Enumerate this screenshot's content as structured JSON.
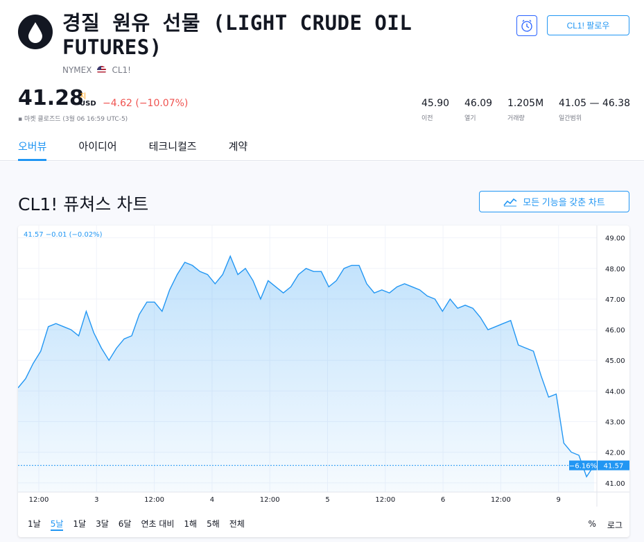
{
  "instrument": {
    "title": "경질 원유 선물 (LIGHT CRUDE OIL FUTURES)",
    "exchange": "NYMEX",
    "symbol": "CL1!",
    "logo_icon": "oil-drop-icon"
  },
  "actions": {
    "alarm_icon": "alarm-clock-icon",
    "follow_label": "CL1! 팔로우"
  },
  "quote": {
    "price": "41.28",
    "delay_marker": "지",
    "currency": "USD",
    "change": "−4.62 (−10.07%)",
    "market_status": "▪ 마켓 클로즈드 (3월 06 16:59 UTC-5)"
  },
  "stats": [
    {
      "value": "45.90",
      "label": "이전"
    },
    {
      "value": "46.09",
      "label": "열기"
    },
    {
      "value": "1.205M",
      "label": "거래량"
    },
    {
      "value": "41.05 — 46.38",
      "label": "일간범위"
    }
  ],
  "tabs": [
    {
      "label": "오버뷰",
      "active": true
    },
    {
      "label": "아이디어",
      "active": false
    },
    {
      "label": "테크니컬즈",
      "active": false
    },
    {
      "label": "계약",
      "active": false
    }
  ],
  "chart_section": {
    "title": "CL1! 퓨쳐스 차트",
    "full_chart_label": "모든 기능을 갖춘 차트",
    "full_chart_icon": "chart-icon"
  },
  "chart_data": {
    "type": "area",
    "legend": "41.57 −0.01 (−0.02%)",
    "ylim": [
      40.7,
      49.4
    ],
    "y_ticks": [
      "49.00",
      "48.00",
      "47.00",
      "46.00",
      "45.00",
      "44.00",
      "43.00",
      "42.00",
      "41.00"
    ],
    "x_ticks": [
      "12:00",
      "3",
      "12:00",
      "4",
      "12:00",
      "5",
      "12:00",
      "6",
      "12:00",
      "9"
    ],
    "last_value": "41.57",
    "last_change": "−6.16%",
    "color": "#2196f3",
    "values": [
      44.1,
      44.4,
      44.9,
      45.3,
      46.1,
      46.2,
      46.1,
      46.0,
      45.8,
      46.6,
      45.9,
      45.4,
      45.0,
      45.4,
      45.7,
      45.8,
      46.5,
      46.9,
      46.9,
      46.6,
      47.3,
      47.8,
      48.2,
      48.1,
      47.9,
      47.8,
      47.5,
      47.8,
      48.4,
      47.8,
      48.0,
      47.6,
      47.0,
      47.6,
      47.4,
      47.2,
      47.4,
      47.8,
      48.0,
      47.9,
      47.9,
      47.4,
      47.6,
      48.0,
      48.1,
      48.1,
      47.5,
      47.2,
      47.3,
      47.2,
      47.4,
      47.5,
      47.4,
      47.3,
      47.1,
      47.0,
      46.6,
      47.0,
      46.7,
      46.8,
      46.7,
      46.4,
      46.0,
      46.1,
      46.2,
      46.3,
      45.5,
      45.4,
      45.3,
      44.5,
      43.8,
      43.9,
      42.3,
      42.0,
      41.9,
      41.2,
      41.57
    ]
  },
  "ranges": [
    {
      "label": "1날",
      "active": false
    },
    {
      "label": "5날",
      "active": true
    },
    {
      "label": "1달",
      "active": false
    },
    {
      "label": "3달",
      "active": false
    },
    {
      "label": "6달",
      "active": false
    },
    {
      "label": "연초 대비",
      "active": false
    },
    {
      "label": "1해",
      "active": false
    },
    {
      "label": "5해",
      "active": false
    },
    {
      "label": "전체",
      "active": false
    }
  ],
  "chart_options": {
    "percent": "%",
    "log": "로그"
  }
}
